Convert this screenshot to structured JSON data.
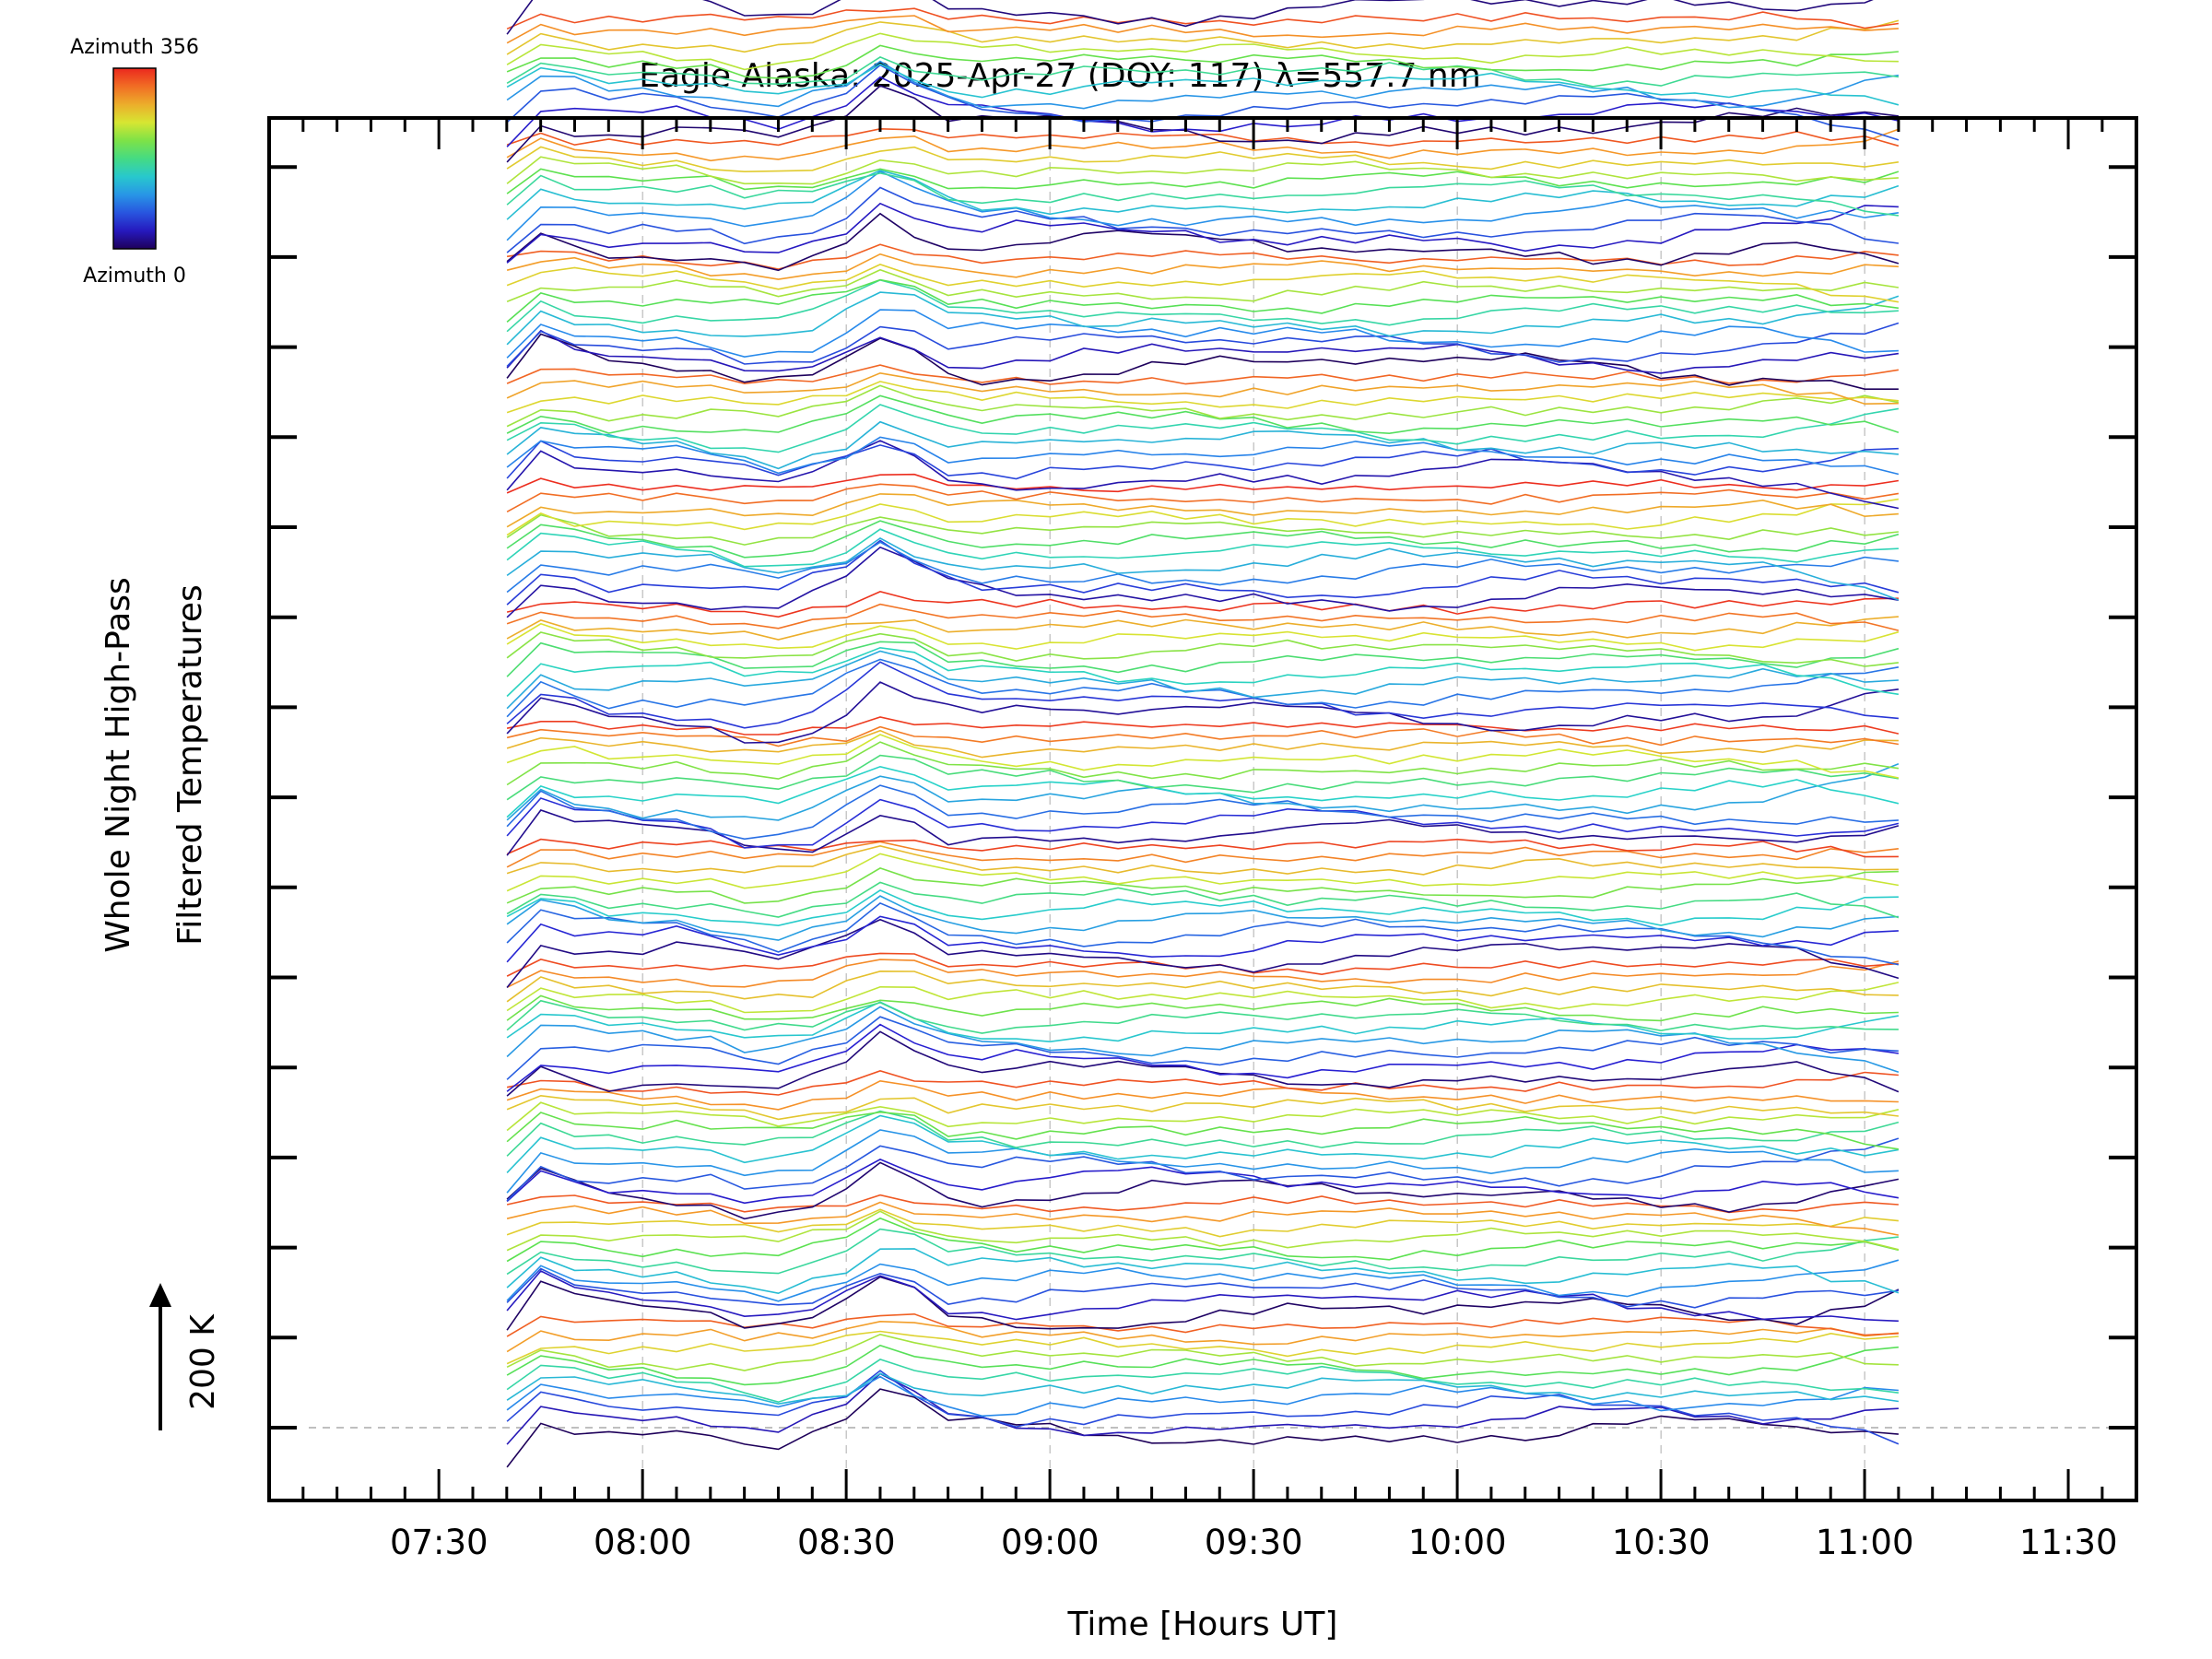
{
  "chart_data": {
    "type": "line",
    "title": "Eagle Alaska: 2025-Apr-27 (DOY: 117) λ=557.7 nm",
    "xlabel": "Time [Hours UT]",
    "ylabel_line1": "Whole Night High-Pass",
    "ylabel_line2": "Filtered Temperatures",
    "scale_label": "200 K",
    "colorbar": {
      "top_label": "Azimuth 356",
      "bottom_label": "Azimuth 0",
      "min": 0,
      "max": 356,
      "colormap": "rainbow"
    },
    "x_tick_labels": [
      "07:30",
      "08:00",
      "08:30",
      "09:00",
      "09:30",
      "10:00",
      "10:30",
      "11:00",
      "11:30"
    ],
    "xlim": [
      7.083,
      11.667
    ],
    "grid": true,
    "series_count": 132,
    "times": [
      7.667,
      7.75,
      7.833,
      7.917,
      8.0,
      8.083,
      8.167,
      8.25,
      8.333,
      8.417,
      8.5,
      8.583,
      8.667,
      8.75,
      8.833,
      8.917,
      9.0,
      9.083,
      9.167,
      9.25,
      9.333,
      9.417,
      9.5,
      9.583,
      9.667,
      9.75,
      9.833,
      9.917,
      10.0,
      10.083,
      10.167,
      10.25,
      10.333,
      10.417,
      10.5,
      10.583,
      10.667,
      10.75,
      10.833,
      10.917,
      11.0,
      11.083
    ]
  }
}
